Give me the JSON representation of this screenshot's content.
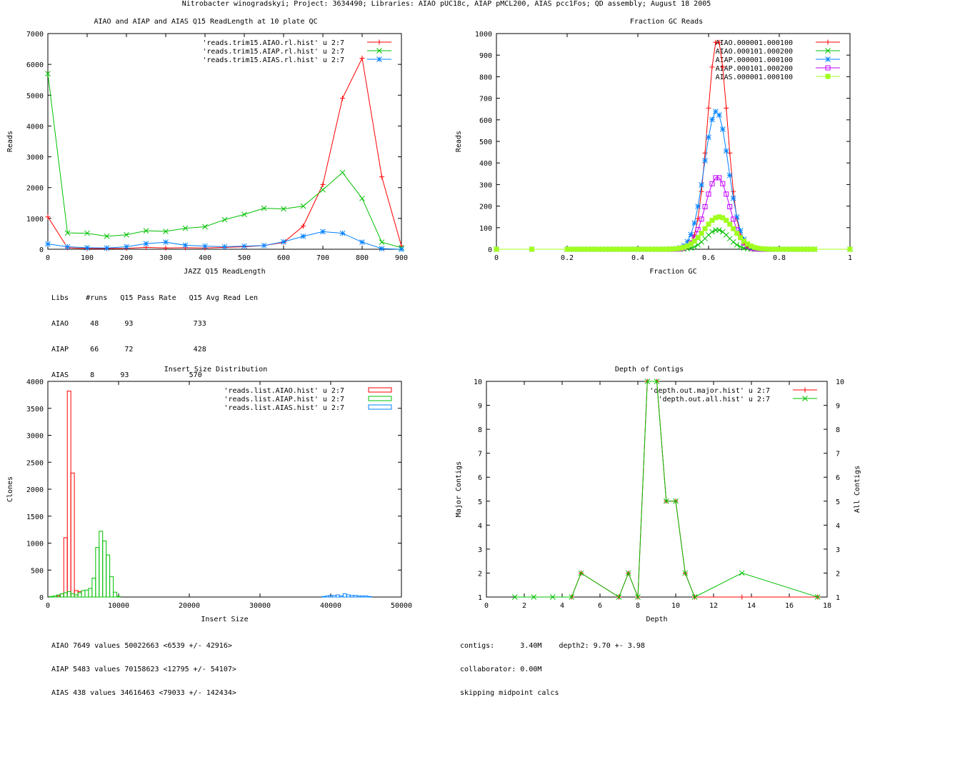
{
  "page_title": "Nitrobacter winogradskyi; Project: 3634490; Libraries: AIAO pUC18c, AIAP pMCL200, AIAS pcc1Fos; QD assembly; August 18 2005",
  "colors": {
    "red": "#ff0000",
    "green": "#00c000",
    "blue": "#0080ff",
    "magenta": "#c000ff",
    "lime": "#a0ff20"
  },
  "chart_data": [
    {
      "type": "line",
      "title": "AIAO and AIAP and AIAS Q15 ReadLength at 10 plate QC",
      "xlabel": "JAZZ Q15 ReadLength",
      "ylabel": "Reads",
      "xlim": [
        0,
        900
      ],
      "ylim": [
        0,
        7000
      ],
      "xticks": [
        0,
        100,
        200,
        300,
        400,
        500,
        600,
        700,
        800,
        900
      ],
      "yticks": [
        0,
        1000,
        2000,
        3000,
        4000,
        5000,
        6000,
        7000
      ],
      "legend_position": "top-right",
      "series": [
        {
          "name": "'reads.trim15.AIAO.rl.hist' u 2:7",
          "color": "#ff0000",
          "marker": "plus",
          "x": [
            0,
            50,
            100,
            150,
            200,
            250,
            300,
            350,
            400,
            450,
            500,
            550,
            600,
            650,
            700,
            750,
            800,
            850,
            900
          ],
          "y": [
            1050,
            50,
            20,
            20,
            30,
            60,
            40,
            50,
            40,
            60,
            80,
            120,
            220,
            750,
            2100,
            4900,
            6200,
            2350,
            100
          ]
        },
        {
          "name": "'reads.trim15.AIAP.rl.hist' u 2:7",
          "color": "#00c000",
          "marker": "cross",
          "x": [
            0,
            50,
            100,
            150,
            200,
            250,
            300,
            350,
            400,
            450,
            500,
            550,
            600,
            650,
            700,
            750,
            800,
            850,
            900
          ],
          "y": [
            5700,
            530,
            520,
            420,
            470,
            600,
            580,
            680,
            730,
            960,
            1130,
            1330,
            1310,
            1400,
            1930,
            2490,
            1650,
            230,
            50
          ]
        },
        {
          "name": "'reads.trim15.AIAS.rl.hist' u 2:7",
          "color": "#0080ff",
          "marker": "star",
          "x": [
            0,
            50,
            100,
            150,
            200,
            250,
            300,
            350,
            400,
            450,
            500,
            550,
            600,
            650,
            700,
            750,
            800,
            850,
            900
          ],
          "y": [
            170,
            80,
            50,
            40,
            80,
            180,
            230,
            130,
            100,
            80,
            100,
            120,
            240,
            420,
            570,
            520,
            230,
            20,
            0
          ]
        }
      ],
      "stats": {
        "header": "Libs    #runs   Q15 Pass Rate   Q15 Avg Read Len",
        "rows": [
          "AIAO     48      93              733",
          "AIAP     66      72              428",
          "AIAS     8      93              570"
        ]
      }
    },
    {
      "type": "scatter",
      "title": "Fraction GC Reads",
      "xlabel": "Fraction GC",
      "ylabel": "Reads",
      "xlim": [
        0,
        1
      ],
      "ylim": [
        0,
        1000
      ],
      "xticks": [
        0,
        0.2,
        0.4,
        0.6,
        0.8,
        1
      ],
      "yticks": [
        0,
        100,
        200,
        300,
        400,
        500,
        600,
        700,
        800,
        900,
        1000
      ],
      "legend_position": "top-right",
      "series": [
        {
          "name": "AIAO.000001.000100",
          "color": "#ff0000",
          "marker": "plus",
          "amplitude": 975,
          "center": 0.625,
          "width": 0.028
        },
        {
          "name": "AIAO.000101.000200",
          "color": "#00c000",
          "marker": "cross",
          "amplitude": 90,
          "center": 0.625,
          "width": 0.032
        },
        {
          "name": "AIAP.000001.000100",
          "color": "#0080ff",
          "marker": "star",
          "amplitude": 640,
          "center": 0.622,
          "width": 0.034
        },
        {
          "name": "AIAP.000101.000200",
          "color": "#c000ff",
          "marker": "box",
          "amplitude": 335,
          "center": 0.625,
          "width": 0.034
        },
        {
          "name": "AIAS.000001.000100",
          "color": "#a0ff20",
          "marker": "filled-box",
          "amplitude": 150,
          "center": 0.63,
          "width": 0.042
        }
      ]
    },
    {
      "type": "bar",
      "title": "Insert Size Distribution",
      "xlabel": "Insert Size",
      "ylabel": "Clones",
      "xlim": [
        0,
        50000
      ],
      "ylim": [
        0,
        4000
      ],
      "xticks": [
        0,
        10000,
        20000,
        30000,
        40000,
        50000
      ],
      "yticks": [
        0,
        500,
        1000,
        1500,
        2000,
        2500,
        3000,
        3500,
        4000
      ],
      "legend_position": "top-right",
      "bin_width": 500,
      "series": [
        {
          "name": "'reads.list.AIAO.hist' u 2:7",
          "color": "#ff0000",
          "x": [
            1500,
            2000,
            2500,
            3000,
            3500,
            4000,
            4500
          ],
          "y": [
            20,
            60,
            1100,
            3820,
            2300,
            120,
            100
          ]
        },
        {
          "name": "'reads.list.AIAP.hist' u 2:7",
          "color": "#00c000",
          "x": [
            500,
            1000,
            1500,
            2000,
            2500,
            3000,
            3500,
            4000,
            4500,
            5000,
            5500,
            6000,
            6500,
            7000,
            7500,
            8000,
            8500,
            9000,
            9500,
            10000
          ],
          "y": [
            10,
            20,
            40,
            60,
            80,
            100,
            60,
            40,
            80,
            120,
            130,
            160,
            350,
            920,
            1220,
            1040,
            780,
            380,
            90,
            10
          ]
        },
        {
          "name": "'reads.list.AIAS.hist' u 2:7",
          "color": "#0080ff",
          "x": [
            39000,
            39500,
            40000,
            40500,
            41000,
            41500,
            42000,
            42500,
            43000,
            43500,
            44000,
            44500,
            45000,
            45500
          ],
          "y": [
            10,
            20,
            30,
            30,
            40,
            20,
            60,
            40,
            30,
            30,
            20,
            20,
            20,
            10
          ]
        }
      ],
      "stats": [
        "AIAO 7649 values 50022663 <6539 +/- 42916>",
        "AIAP 5483 values 70158623 <12795 +/- 54107>",
        "AIAS 438 values 34616463 <79033 +/- 142434>"
      ]
    },
    {
      "type": "line",
      "title": "Depth of Contigs",
      "xlabel": "Depth",
      "ylabel": "Major Contigs",
      "y2label": "All Contigs",
      "xlim": [
        0,
        18
      ],
      "ylim": [
        1,
        10
      ],
      "xticks": [
        0,
        2,
        4,
        6,
        8,
        10,
        12,
        14,
        16,
        18
      ],
      "yticks": [
        1,
        2,
        3,
        4,
        5,
        6,
        7,
        8,
        9,
        10
      ],
      "legend_position": "top-right",
      "series": [
        {
          "name": "'depth.out.major.hist' u 2:7",
          "color": "#ff0000",
          "marker": "plus",
          "x": [
            4.5,
            5,
            7,
            7.5,
            8,
            8.5,
            9,
            9.5,
            10,
            10.5,
            11,
            13.5,
            17.5
          ],
          "y": [
            1,
            2,
            1,
            2,
            1,
            10,
            10,
            5,
            5,
            2,
            1,
            1,
            1
          ]
        },
        {
          "name": "'depth.out.all.hist' u 2:7",
          "color": "#00c000",
          "marker": "cross",
          "x": [
            1.5,
            2.5,
            3.5,
            4.5,
            5,
            7,
            7.5,
            8,
            8.5,
            9,
            9.5,
            10,
            10.5,
            11,
            13.5,
            17.5
          ],
          "y": [
            1,
            1,
            1,
            1,
            2,
            1,
            2,
            1,
            10,
            10,
            5,
            5,
            2,
            1,
            2,
            1
          ]
        }
      ],
      "stats": [
        "contigs:      3.40M    depth2: 9.70 +- 3.98",
        "collaborator: 0.00M",
        "skipping midpoint calcs"
      ]
    }
  ]
}
